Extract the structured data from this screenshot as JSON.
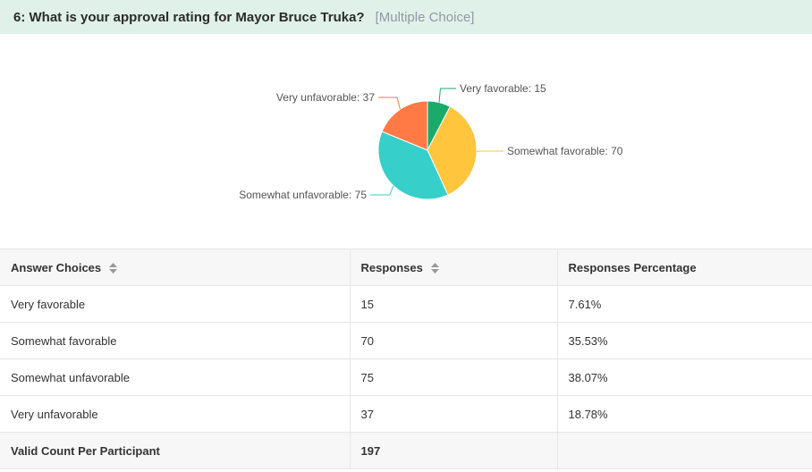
{
  "question": {
    "title": "6: What is your approval rating for Mayor Bruce Truka?",
    "type": "[Multiple Choice]"
  },
  "chart_data": {
    "type": "pie",
    "categories": [
      "Very favorable",
      "Somewhat favorable",
      "Somewhat unfavorable",
      "Very unfavorable"
    ],
    "values": [
      15,
      70,
      75,
      37
    ],
    "colors": [
      "#1aab6b",
      "#ffc53d",
      "#36cfc9",
      "#ff7a45"
    ],
    "labels": [
      "Very favorable: 15",
      "Somewhat favorable: 70",
      "Somewhat unfavorable: 75",
      "Very unfavorable: 37"
    ]
  },
  "table": {
    "headers": [
      "Answer Choices",
      "Responses",
      "Responses Percentage"
    ],
    "rows": [
      [
        "Very favorable",
        "15",
        "7.61%"
      ],
      [
        "Somewhat favorable",
        "70",
        "35.53%"
      ],
      [
        "Somewhat unfavorable",
        "75",
        "38.07%"
      ],
      [
        "Very unfavorable",
        "37",
        "18.78%"
      ]
    ],
    "total": [
      "Valid Count Per Participant",
      "197",
      ""
    ]
  }
}
